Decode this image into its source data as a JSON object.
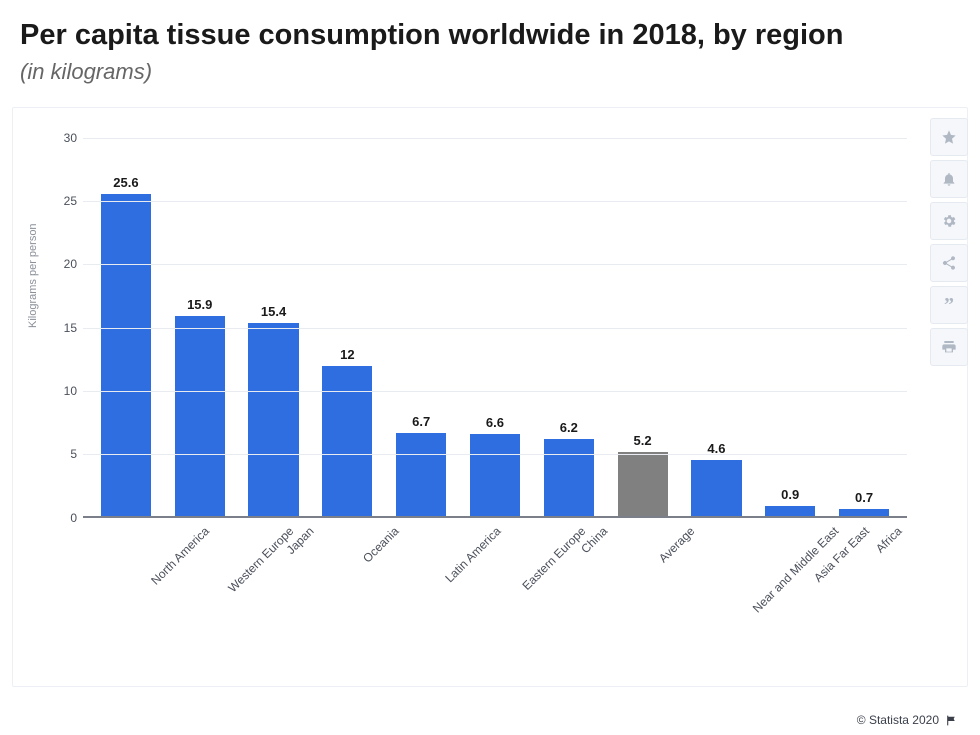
{
  "title": "Per capita tissue consumption worldwide in 2018, by region",
  "subtitle": "(in kilograms)",
  "footer": {
    "text": "© Statista 2020"
  },
  "toolbar": {
    "star": "favorite-icon",
    "bell": "notify-icon",
    "gear": "settings-icon",
    "share": "share-icon",
    "quote": "cite-icon",
    "print": "print-icon"
  },
  "chart": {
    "type": "bar",
    "ylabel": "Kilograms per person",
    "ylabel_fontsize": 11,
    "ylim": [
      0,
      30
    ],
    "ytick_step": 5,
    "yticks": [
      0,
      5,
      10,
      15,
      20,
      25,
      30
    ],
    "background_color": "#ffffff",
    "grid_color": "#e8ebef",
    "axis_color": "#7a7f8a",
    "value_label_fontsize": 13,
    "value_label_weight": 700,
    "xlabel_fontsize": 12,
    "xlabel_rotation_deg": -45,
    "bar_width_ratio": 0.68,
    "default_bar_color": "#2f6ee0",
    "highlight_bar_color": "#808080",
    "categories": [
      "North America",
      "Western Europe",
      "Japan",
      "Oceania",
      "Latin America",
      "Eastern Europe",
      "China",
      "Average",
      "Near and Middle East",
      "Asia Far East",
      "Africa"
    ],
    "values": [
      25.6,
      15.9,
      15.4,
      12,
      6.7,
      6.6,
      6.2,
      5.2,
      4.6,
      0.9,
      0.7
    ],
    "bar_colors": [
      "#2f6ee0",
      "#2f6ee0",
      "#2f6ee0",
      "#2f6ee0",
      "#2f6ee0",
      "#2f6ee0",
      "#2f6ee0",
      "#808080",
      "#2f6ee0",
      "#2f6ee0",
      "#2f6ee0"
    ]
  }
}
